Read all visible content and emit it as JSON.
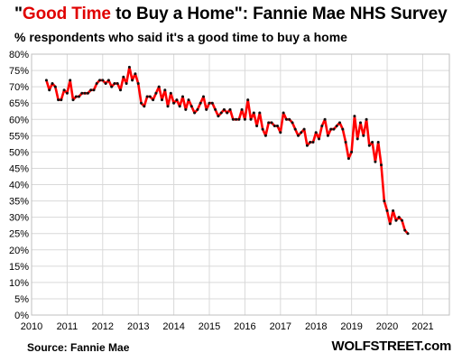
{
  "header": {
    "title_q1": "\"",
    "title_hl": "Good Time",
    "title_rest": " to Buy a Home\": Fannie Mae NHS Survey",
    "subtitle": "% respondents who said it's a good time to buy a home"
  },
  "footer": {
    "source": "Source: Fannie Mae",
    "brand": "WOLFSTREET.com"
  },
  "colors": {
    "line": "#ff0000",
    "marker": "#111111",
    "grid": "#d9d9d9",
    "axis": "#bfbfbf"
  },
  "chart_data": {
    "type": "line",
    "x_start": "2010-06",
    "x_frequency": "monthly",
    "xlim": [
      2010,
      2021.75
    ],
    "ylim": [
      0,
      80
    ],
    "y_ticks": [
      0,
      5,
      10,
      15,
      20,
      25,
      30,
      35,
      40,
      45,
      50,
      55,
      60,
      65,
      70,
      75,
      80
    ],
    "y_tick_suffix": "%",
    "x_ticks": [
      "2010",
      "2011",
      "2012",
      "2013",
      "2014",
      "2015",
      "2016",
      "2017",
      "2018",
      "2019",
      "2020",
      "2021"
    ],
    "grid": true,
    "legend": "none",
    "series": [
      {
        "values": [
          72,
          69,
          71,
          70,
          66,
          66,
          69,
          68,
          72,
          66,
          67,
          67,
          68,
          68,
          68,
          69,
          69,
          71,
          72,
          72,
          71,
          72,
          70,
          71,
          71,
          69,
          73,
          71,
          76,
          72,
          74,
          71,
          65,
          64,
          67,
          67,
          66,
          68,
          70,
          66,
          69,
          64,
          68,
          65,
          66,
          64,
          67,
          63,
          66,
          64,
          62,
          63,
          65,
          67,
          63,
          65,
          65,
          63,
          61,
          62,
          63,
          62,
          63,
          60,
          60,
          60,
          63,
          60,
          66,
          60,
          62,
          58,
          62,
          57,
          55,
          59,
          59,
          58,
          58,
          56,
          62,
          60,
          60,
          59,
          57,
          55,
          56,
          57,
          52,
          53,
          53,
          56,
          54,
          58,
          60,
          55,
          57,
          57,
          58,
          59,
          57,
          53,
          48,
          50,
          61,
          54,
          59,
          55,
          60,
          52,
          53,
          47,
          53,
          46,
          35,
          32,
          28,
          32,
          29,
          30,
          29,
          26,
          25
        ]
      }
    ]
  }
}
